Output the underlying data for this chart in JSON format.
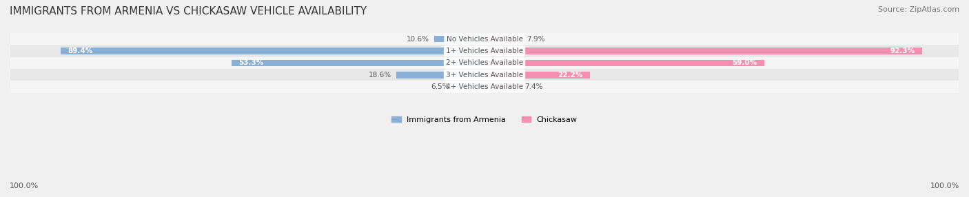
{
  "title": "IMMIGRANTS FROM ARMENIA VS CHICKASAW VEHICLE AVAILABILITY",
  "source": "Source: ZipAtlas.com",
  "categories": [
    "No Vehicles Available",
    "1+ Vehicles Available",
    "2+ Vehicles Available",
    "3+ Vehicles Available",
    "4+ Vehicles Available"
  ],
  "armenia_values": [
    10.6,
    89.4,
    53.3,
    18.6,
    6.5
  ],
  "chickasaw_values": [
    7.9,
    92.3,
    59.0,
    22.2,
    7.4
  ],
  "armenia_color": "#8aafd4",
  "chickasaw_color": "#f48fb1",
  "armenia_label": "Immigrants from Armenia",
  "chickasaw_label": "Chickasaw",
  "axis_label_left": "100.0%",
  "axis_label_right": "100.0%",
  "background_color": "#f0f0f0",
  "row_colors": [
    "#f5f5f5",
    "#e8e8e8",
    "#f5f5f5",
    "#e8e8e8",
    "#f5f5f5"
  ],
  "title_fontsize": 11,
  "source_fontsize": 8,
  "bar_height": 0.55,
  "max_value": 100.0
}
